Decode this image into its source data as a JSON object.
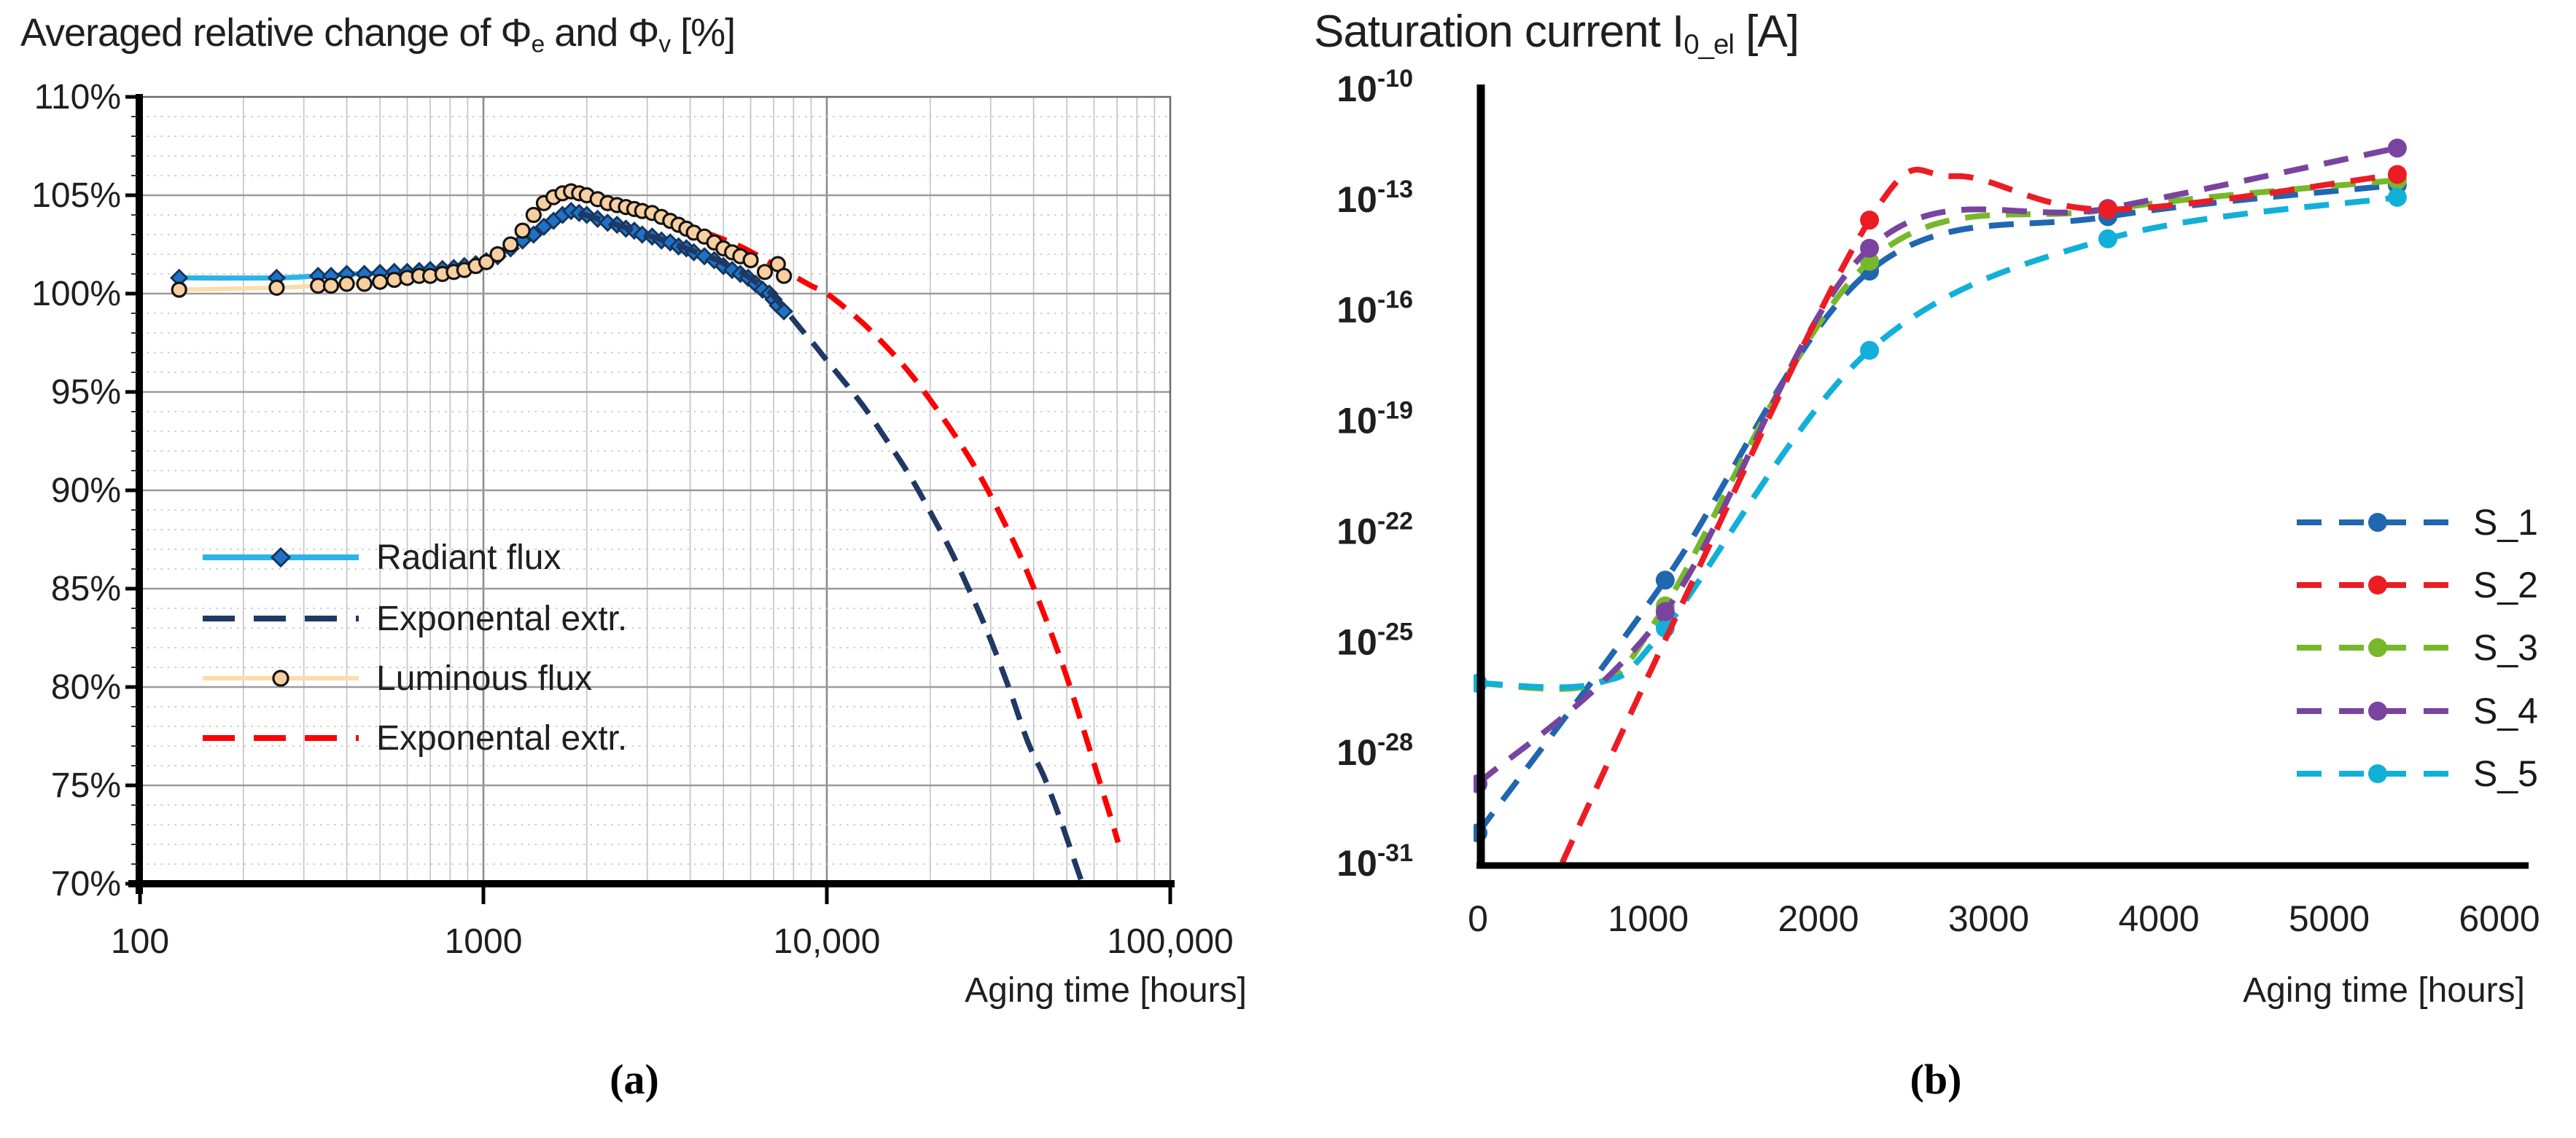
{
  "figure": {
    "caption_a": "(a)",
    "caption_b": "(b)",
    "background": "#ffffff"
  },
  "chart_data": [
    {
      "id": "a",
      "type": "line",
      "title_segments": [
        {
          "text": "Averaged relative change of Φ"
        },
        {
          "text": "e",
          "sub": true
        },
        {
          "text": " and Φ"
        },
        {
          "text": "v",
          "sub": true
        },
        {
          "text": " [%]"
        }
      ],
      "x_axis": {
        "label": "Aging time [hours]",
        "scale": "log",
        "min": 100,
        "max": 100000,
        "tick_values": [
          100,
          1000,
          10000,
          100000
        ],
        "tick_labels": [
          "100",
          "1000",
          "10,000",
          "100,000"
        ]
      },
      "y_axis": {
        "min": 70,
        "max": 110,
        "major_step": 5,
        "minor_step": 1,
        "tick_values": [
          110,
          105,
          100,
          95,
          90,
          85,
          80,
          75,
          70
        ],
        "tick_labels": [
          "110%",
          "105%",
          "100%",
          "95%",
          "90%",
          "85%",
          "80%",
          "75%",
          "70%"
        ]
      },
      "grid": {
        "h_major_solid": true,
        "h_minor_dotted": true,
        "v_log_lines": true
      },
      "legend_position": "inside lower left",
      "series": [
        {
          "name": "Radiant flux",
          "color": "#2eb3e8",
          "style": "solid",
          "marker": "diamond",
          "marker_fill": "#1e73c8",
          "marker_stroke": "#16365c",
          "points": [
            [
              130,
              100.8
            ],
            [
              250,
              100.8
            ],
            [
              330,
              100.9
            ],
            [
              360,
              100.9
            ],
            [
              400,
              101.0
            ],
            [
              450,
              101.0
            ],
            [
              500,
              101.05
            ],
            [
              550,
              101.1
            ],
            [
              600,
              101.1
            ],
            [
              650,
              101.15
            ],
            [
              700,
              101.2
            ],
            [
              760,
              101.25
            ],
            [
              820,
              101.3
            ],
            [
              880,
              101.4
            ],
            [
              950,
              101.5
            ],
            [
              1020,
              101.65
            ],
            [
              1100,
              101.9
            ],
            [
              1200,
              102.3
            ],
            [
              1300,
              102.7
            ],
            [
              1400,
              103.0
            ],
            [
              1500,
              103.4
            ],
            [
              1600,
              103.7
            ],
            [
              1700,
              104.0
            ],
            [
              1800,
              104.2
            ],
            [
              1900,
              104.1
            ],
            [
              2000,
              104.0
            ],
            [
              2150,
              103.8
            ],
            [
              2300,
              103.6
            ],
            [
              2450,
              103.5
            ],
            [
              2600,
              103.3
            ],
            [
              2750,
              103.2
            ],
            [
              2900,
              103.0
            ],
            [
              3100,
              102.9
            ],
            [
              3300,
              102.7
            ],
            [
              3500,
              102.6
            ],
            [
              3700,
              102.4
            ],
            [
              3900,
              102.3
            ],
            [
              4100,
              102.1
            ],
            [
              4400,
              101.9
            ],
            [
              4700,
              101.7
            ],
            [
              5000,
              101.4
            ],
            [
              5300,
              101.2
            ],
            [
              5600,
              101.0
            ],
            [
              5900,
              100.8
            ],
            [
              6200,
              100.5
            ],
            [
              6500,
              100.2
            ],
            [
              6800,
              100.0
            ],
            [
              7000,
              99.7
            ],
            [
              7200,
              99.4
            ],
            [
              7500,
              99.1
            ]
          ]
        },
        {
          "name": "Exponental extr.",
          "color": "#203864",
          "style": "dashed",
          "marker": null,
          "points": [
            [
              1900,
              104.1
            ],
            [
              2200,
              103.75
            ],
            [
              2500,
              103.45
            ],
            [
              2800,
              103.15
            ],
            [
              3100,
              102.9
            ],
            [
              3500,
              102.6
            ],
            [
              3900,
              102.3
            ],
            [
              4300,
              102.0
            ],
            [
              4800,
              101.7
            ],
            [
              5300,
              101.3
            ],
            [
              5800,
              100.95
            ],
            [
              6300,
              100.5
            ],
            [
              6800,
              100.1
            ],
            [
              7300,
              99.5
            ],
            [
              7800,
              98.9
            ],
            [
              8500,
              98.1
            ],
            [
              9200,
              97.4
            ],
            [
              10000,
              96.6
            ],
            [
              11500,
              95.3
            ],
            [
              13000,
              94.1
            ],
            [
              15000,
              92.5
            ],
            [
              17500,
              90.7
            ],
            [
              20000,
              88.9
            ],
            [
              23000,
              86.9
            ],
            [
              26500,
              84.6
            ],
            [
              30000,
              82.4
            ],
            [
              34000,
              79.9
            ],
            [
              38500,
              77.2
            ],
            [
              43000,
              75.4
            ],
            [
              48000,
              73.2
            ],
            [
              53000,
              71.0
            ],
            [
              56000,
              69.8
            ]
          ]
        },
        {
          "name": "Luminous flux",
          "color": "#fbdcad",
          "style": "solid",
          "marker": "circle",
          "marker_fill": "#f8cf9e",
          "marker_stroke": "#141414",
          "points": [
            [
              130,
              100.2
            ],
            [
              250,
              100.3
            ],
            [
              330,
              100.4
            ],
            [
              360,
              100.4
            ],
            [
              400,
              100.5
            ],
            [
              450,
              100.5
            ],
            [
              500,
              100.6
            ],
            [
              550,
              100.7
            ],
            [
              600,
              100.8
            ],
            [
              650,
              100.9
            ],
            [
              700,
              100.9
            ],
            [
              760,
              101.0
            ],
            [
              820,
              101.1
            ],
            [
              880,
              101.2
            ],
            [
              950,
              101.4
            ],
            [
              1020,
              101.6
            ],
            [
              1100,
              102.0
            ],
            [
              1200,
              102.5
            ],
            [
              1300,
              103.2
            ],
            [
              1400,
              104.0
            ],
            [
              1500,
              104.6
            ],
            [
              1600,
              104.9
            ],
            [
              1700,
              105.1
            ],
            [
              1800,
              105.2
            ],
            [
              1900,
              105.1
            ],
            [
              2000,
              105.0
            ],
            [
              2150,
              104.8
            ],
            [
              2300,
              104.6
            ],
            [
              2450,
              104.5
            ],
            [
              2600,
              104.4
            ],
            [
              2750,
              104.3
            ],
            [
              2900,
              104.2
            ],
            [
              3100,
              104.1
            ],
            [
              3300,
              103.9
            ],
            [
              3500,
              103.7
            ],
            [
              3700,
              103.5
            ],
            [
              3900,
              103.3
            ],
            [
              4100,
              103.1
            ],
            [
              4400,
              102.9
            ],
            [
              4700,
              102.6
            ],
            [
              5000,
              102.3
            ],
            [
              5300,
              102.1
            ],
            [
              5600,
              101.9
            ],
            [
              6000,
              101.7
            ],
            [
              6600,
              101.1
            ],
            [
              7200,
              101.5
            ],
            [
              7500,
              100.9
            ]
          ]
        },
        {
          "name": "Exponental extr.",
          "color": "#fe0000",
          "style": "dashed",
          "marker": null,
          "points": [
            [
              2300,
              104.6
            ],
            [
              2600,
              104.4
            ],
            [
              2900,
              104.2
            ],
            [
              3300,
              103.95
            ],
            [
              3700,
              103.6
            ],
            [
              4100,
              103.3
            ],
            [
              4600,
              103.0
            ],
            [
              5100,
              102.7
            ],
            [
              5600,
              102.4
            ],
            [
              6200,
              102.0
            ],
            [
              6800,
              101.6
            ],
            [
              7400,
              101.2
            ],
            [
              8000,
              100.9
            ],
            [
              9000,
              100.4
            ],
            [
              10000,
              100.0
            ],
            [
              12000,
              98.9
            ],
            [
              14000,
              97.8
            ],
            [
              17000,
              96.2
            ],
            [
              20000,
              94.6
            ],
            [
              24000,
              92.6
            ],
            [
              28000,
              90.7
            ],
            [
              33000,
              88.3
            ],
            [
              38000,
              86.0
            ],
            [
              44000,
              83.2
            ],
            [
              50000,
              80.5
            ],
            [
              56000,
              77.8
            ],
            [
              62000,
              75.3
            ],
            [
              67000,
              73.4
            ],
            [
              70500,
              72.1
            ]
          ]
        }
      ]
    },
    {
      "id": "b",
      "type": "line",
      "title_segments": [
        {
          "text": "Saturation current I"
        },
        {
          "text": "0_el",
          "sub": true
        },
        {
          "text": " [A]"
        }
      ],
      "x_axis": {
        "label": "Aging time [hours]",
        "scale": "linear",
        "min": 0,
        "max": 6000,
        "tick_values": [
          0,
          1000,
          2000,
          3000,
          4000,
          5000,
          6000
        ],
        "tick_labels": [
          "0",
          "1000",
          "2000",
          "3000",
          "4000",
          "5000",
          "6000"
        ]
      },
      "y_axis": {
        "scale": "log",
        "tick_base": "10",
        "tick_exponents": [
          "-10",
          "-13",
          "-16",
          "-19",
          "-22",
          "-25",
          "-28",
          "-31"
        ],
        "max_exp": -10,
        "min_exp": -31
      },
      "grid": {
        "none": true
      },
      "legend_position": "inside right",
      "series": [
        {
          "name": "S_1",
          "color": "#2066b0",
          "style": "dashed",
          "marker": "dot",
          "points": [
            [
              0,
              7e-31
            ],
            [
              1100,
              5e-24
            ],
            [
              2300,
              1.2e-15
            ],
            [
              3700,
              3.6e-14
            ],
            [
              5400,
              2.6e-13
            ]
          ],
          "marker_x": [
            0,
            1100,
            2300,
            3700,
            5400
          ]
        },
        {
          "name": "S_2",
          "color": "#ec1c24",
          "style": "dashed",
          "marker": "dot",
          "points": [
            [
              0,
              1e-36
            ],
            [
              1100,
              1.2e-25
            ],
            [
              2300,
              2.9e-14
            ],
            [
              2800,
              4.5e-13
            ],
            [
              3700,
              5.6e-14
            ],
            [
              5400,
              5e-13
            ]
          ],
          "marker_x": [
            2300,
            3700,
            5400
          ]
        },
        {
          "name": "S_3",
          "color": "#77b82a",
          "style": "dashed",
          "marker": "dot",
          "points": [
            [
              0,
              8e-27
            ],
            [
              700,
              8e-27
            ],
            [
              1100,
              1e-24
            ],
            [
              2300,
              2.2e-15
            ],
            [
              3700,
              5.6e-14
            ],
            [
              5400,
              3.5e-13
            ]
          ],
          "marker_x": [
            0,
            1100,
            2300,
            3700,
            5400
          ]
        },
        {
          "name": "S_4",
          "color": "#7944a0",
          "style": "dashed",
          "marker": "dot",
          "points": [
            [
              0,
              1.5e-29
            ],
            [
              1100,
              7e-25
            ],
            [
              2300,
              5e-15
            ],
            [
              3700,
              6e-14
            ],
            [
              5400,
              2.6e-12
            ]
          ],
          "marker_x": [
            0,
            1100,
            2300,
            3700,
            5400
          ]
        },
        {
          "name": "S_5",
          "color": "#12b0d8",
          "style": "dashed",
          "marker": "dot",
          "points": [
            [
              0,
              8e-27
            ],
            [
              700,
              8e-27
            ],
            [
              1100,
              2.5e-25
            ],
            [
              2300,
              8.5e-18
            ],
            [
              3700,
              9e-15
            ],
            [
              5400,
              1.2e-13
            ]
          ],
          "marker_x": [
            0,
            1100,
            2300,
            3700,
            5400
          ]
        }
      ]
    }
  ]
}
